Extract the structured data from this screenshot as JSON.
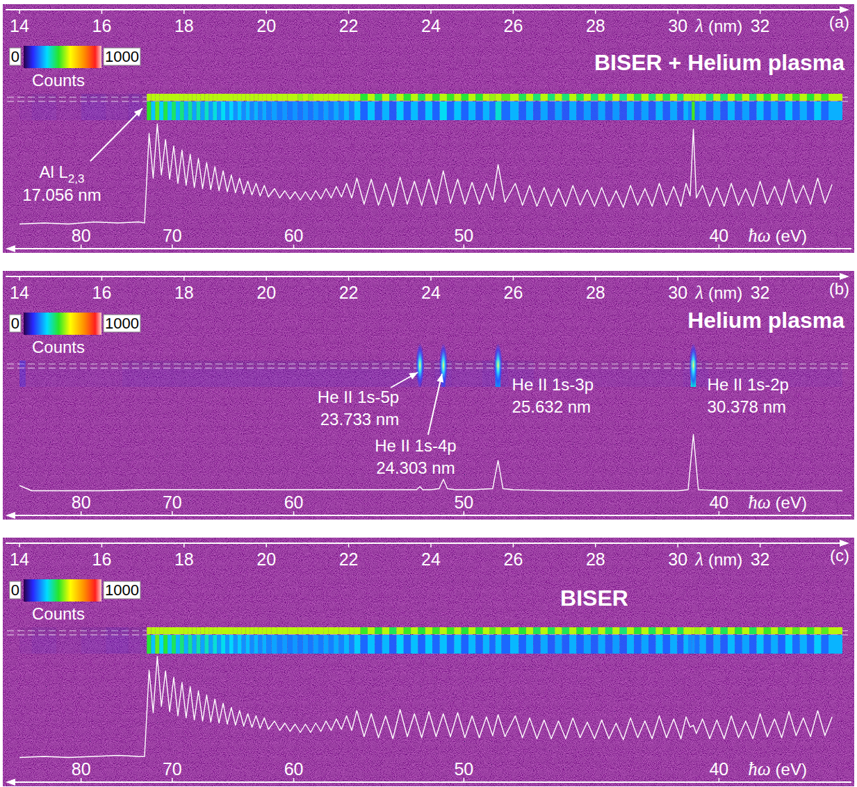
{
  "chart_data": [
    {
      "type": "line",
      "panel_label": "(a)",
      "title": "BISER + Helium plasma",
      "x_label": "λ (nm)",
      "x2_label": "ħω (eV)",
      "xlim": [
        14,
        34
      ],
      "xticks": [
        14,
        16,
        18,
        20,
        22,
        24,
        26,
        28,
        30,
        32
      ],
      "x2lim": [
        88.56,
        36.47
      ],
      "x2ticks": [
        80,
        70,
        60,
        50,
        40
      ],
      "ylim": [
        0,
        100
      ],
      "tick_labels": "x",
      "color": "#ffffff",
      "colorbar": {
        "range": [
          0,
          1000
        ],
        "ticks": [
          0,
          1000
        ],
        "label": "Counts"
      },
      "annotations": [
        {
          "x": 17.056,
          "lines": [
            "Al L",
            "17.056 nm"
          ],
          "subscript": "2,3"
        }
      ],
      "x": [
        14.0,
        14.6,
        15.2,
        15.8,
        16.4,
        16.9,
        17.04,
        17.15,
        17.25,
        17.35,
        17.45,
        17.55,
        17.65,
        17.75,
        17.85,
        17.95,
        18.05,
        18.15,
        18.25,
        18.35,
        18.45,
        18.55,
        18.65,
        18.75,
        18.85,
        18.95,
        19.05,
        19.15,
        19.25,
        19.35,
        19.45,
        19.55,
        19.65,
        19.75,
        19.85,
        19.95,
        20.05,
        20.2,
        20.325,
        20.45,
        20.575,
        20.7,
        20.825,
        20.95,
        21.075,
        21.2,
        21.325,
        21.45,
        21.575,
        21.7,
        21.825,
        21.95,
        22.075,
        22.2,
        22.375,
        22.55,
        22.725,
        22.9,
        23.075,
        23.25,
        23.425,
        23.6,
        23.775,
        23.95,
        24.125,
        24.3,
        24.475,
        24.65,
        24.825,
        25.0,
        25.175,
        25.35,
        25.5,
        25.632,
        25.8,
        26.05,
        26.225,
        26.4,
        26.575,
        26.75,
        26.925,
        27.1,
        27.275,
        27.45,
        27.625,
        27.8,
        27.975,
        28.15,
        28.325,
        28.5,
        28.675,
        28.85,
        29.025,
        29.2,
        29.375,
        29.55,
        29.725,
        29.9,
        30.075,
        30.2,
        30.3,
        30.378,
        30.45,
        30.6,
        30.775,
        30.95,
        31.125,
        31.3,
        31.475,
        31.65,
        31.825,
        32.0,
        32.175,
        32.35,
        32.525,
        32.7,
        32.875,
        33.05,
        33.225,
        33.4,
        33.575,
        33.75
      ],
      "values": [
        1,
        2,
        1,
        3,
        2,
        3,
        2,
        88,
        45,
        97,
        48,
        82,
        44,
        76,
        40,
        72,
        38,
        68,
        36,
        64,
        35,
        60,
        34,
        56,
        33,
        52,
        32,
        48,
        31,
        45,
        30,
        42,
        29,
        40,
        28,
        38,
        27,
        35,
        26,
        33,
        25,
        32,
        24,
        32,
        24,
        33,
        25,
        35,
        26,
        37,
        27,
        40,
        26,
        45,
        20,
        44,
        19,
        40,
        18,
        46,
        20,
        42,
        19,
        44,
        20,
        52,
        21,
        44,
        20,
        41,
        20,
        40,
        24,
        58,
        22,
        40,
        19,
        38,
        18,
        36,
        18,
        35,
        18,
        38,
        19,
        34,
        18,
        36,
        18,
        33,
        17,
        38,
        19,
        35,
        18,
        40,
        19,
        37,
        18,
        40,
        28,
        92,
        26,
        38,
        18,
        36,
        18,
        40,
        19,
        35,
        18,
        42,
        20,
        37,
        19,
        44,
        21,
        38,
        20,
        45,
        21,
        39
      ]
    },
    {
      "type": "line",
      "panel_label": "(b)",
      "title": "Helium plasma",
      "x_label": "λ (nm)",
      "x2_label": "ħω (eV)",
      "xlim": [
        14,
        34
      ],
      "xticks": [
        14,
        16,
        18,
        20,
        22,
        24,
        26,
        28,
        30,
        32
      ],
      "x2lim": [
        88.56,
        36.47
      ],
      "x2ticks": [
        80,
        70,
        60,
        50,
        40
      ],
      "ylim": [
        0,
        100
      ],
      "tick_labels": "x",
      "color": "#ffffff",
      "colorbar": {
        "range": [
          0,
          1000
        ],
        "ticks": [
          0,
          1000
        ],
        "label": "Counts"
      },
      "annotations": [
        {
          "x": 23.733,
          "lines": [
            "He II 1s-5p",
            "23.733 nm"
          ]
        },
        {
          "x": 24.303,
          "lines": [
            "He II 1s-4p",
            "24.303 nm"
          ]
        },
        {
          "x": 25.632,
          "lines": [
            "He II 1s-3p",
            "25.632 nm"
          ]
        },
        {
          "x": 30.378,
          "lines": [
            "He II 1s-2p",
            "30.378 nm"
          ]
        }
      ],
      "x": [
        14.0,
        14.3,
        15,
        16,
        17,
        18,
        19,
        20,
        21,
        22,
        23,
        23.5,
        23.65,
        23.733,
        23.8,
        24.0,
        24.2,
        24.303,
        24.4,
        24.6,
        25.0,
        25.5,
        25.632,
        25.75,
        26.0,
        27,
        28,
        29,
        30,
        30.25,
        30.378,
        30.5,
        31,
        32,
        33,
        34
      ],
      "values": [
        6,
        1,
        1,
        1,
        2,
        2,
        2,
        2,
        2,
        2,
        2,
        2,
        2,
        5,
        2,
        2,
        3,
        12,
        3,
        2,
        2,
        3,
        30,
        3,
        2,
        1,
        1,
        1,
        1,
        2,
        55,
        2,
        1,
        1,
        1,
        1
      ]
    },
    {
      "type": "line",
      "panel_label": "(c)",
      "title": "BISER",
      "x_label": "λ (nm)",
      "x2_label": "ħω (eV)",
      "xlim": [
        14,
        34
      ],
      "xticks": [
        14,
        16,
        18,
        20,
        22,
        24,
        26,
        28,
        30,
        32
      ],
      "x2lim": [
        88.56,
        36.47
      ],
      "x2ticks": [
        80,
        70,
        60,
        50,
        40
      ],
      "ylim": [
        0,
        100
      ],
      "tick_labels": "x",
      "color": "#ffffff",
      "colorbar": {
        "range": [
          0,
          1000
        ],
        "ticks": [
          0,
          1000
        ],
        "label": "Counts"
      },
      "x": [
        14.0,
        14.6,
        15.2,
        15.8,
        16.4,
        16.9,
        17.04,
        17.15,
        17.25,
        17.35,
        17.45,
        17.55,
        17.65,
        17.75,
        17.85,
        17.95,
        18.05,
        18.15,
        18.25,
        18.35,
        18.45,
        18.55,
        18.65,
        18.75,
        18.85,
        18.95,
        19.05,
        19.15,
        19.25,
        19.35,
        19.45,
        19.55,
        19.65,
        19.75,
        19.85,
        19.95,
        20.05,
        20.2,
        20.325,
        20.45,
        20.575,
        20.7,
        20.825,
        20.95,
        21.075,
        21.2,
        21.325,
        21.45,
        21.575,
        21.7,
        21.825,
        21.95,
        22.075,
        22.2,
        22.375,
        22.55,
        22.725,
        22.9,
        23.075,
        23.25,
        23.425,
        23.6,
        23.775,
        23.95,
        24.125,
        24.3,
        24.475,
        24.65,
        24.825,
        25.0,
        25.175,
        25.35,
        25.5,
        25.632,
        25.8,
        26.05,
        26.225,
        26.4,
        26.575,
        26.75,
        26.925,
        27.1,
        27.275,
        27.45,
        27.625,
        27.8,
        27.975,
        28.15,
        28.325,
        28.5,
        28.675,
        28.85,
        29.025,
        29.2,
        29.375,
        29.55,
        29.725,
        29.9,
        30.075,
        30.2,
        30.3,
        30.378,
        30.45,
        30.6,
        30.775,
        30.95,
        31.125,
        31.3,
        31.475,
        31.65,
        31.825,
        32.0,
        32.175,
        32.35,
        32.525,
        32.7,
        32.875,
        33.05,
        33.225,
        33.4,
        33.575,
        33.75
      ],
      "values": [
        1,
        2,
        1,
        2,
        3,
        2,
        2,
        85,
        44,
        98,
        50,
        84,
        45,
        78,
        41,
        73,
        39,
        69,
        37,
        65,
        36,
        61,
        35,
        57,
        34,
        53,
        33,
        49,
        32,
        46,
        31,
        43,
        30,
        41,
        29,
        39,
        28,
        36,
        27,
        34,
        26,
        33,
        25,
        33,
        25,
        34,
        26,
        36,
        27,
        38,
        28,
        41,
        27,
        46,
        21,
        43,
        20,
        41,
        19,
        47,
        21,
        43,
        20,
        45,
        21,
        43,
        21,
        44,
        20,
        41,
        20,
        40,
        22,
        42,
        21,
        41,
        20,
        39,
        19,
        37,
        19,
        36,
        19,
        39,
        20,
        35,
        19,
        37,
        19,
        34,
        18,
        39,
        20,
        36,
        19,
        41,
        20,
        38,
        19,
        40,
        30,
        32,
        24,
        38,
        19,
        37,
        19,
        41,
        20,
        36,
        19,
        43,
        21,
        38,
        20,
        45,
        22,
        39,
        21,
        46,
        22,
        40
      ]
    }
  ]
}
